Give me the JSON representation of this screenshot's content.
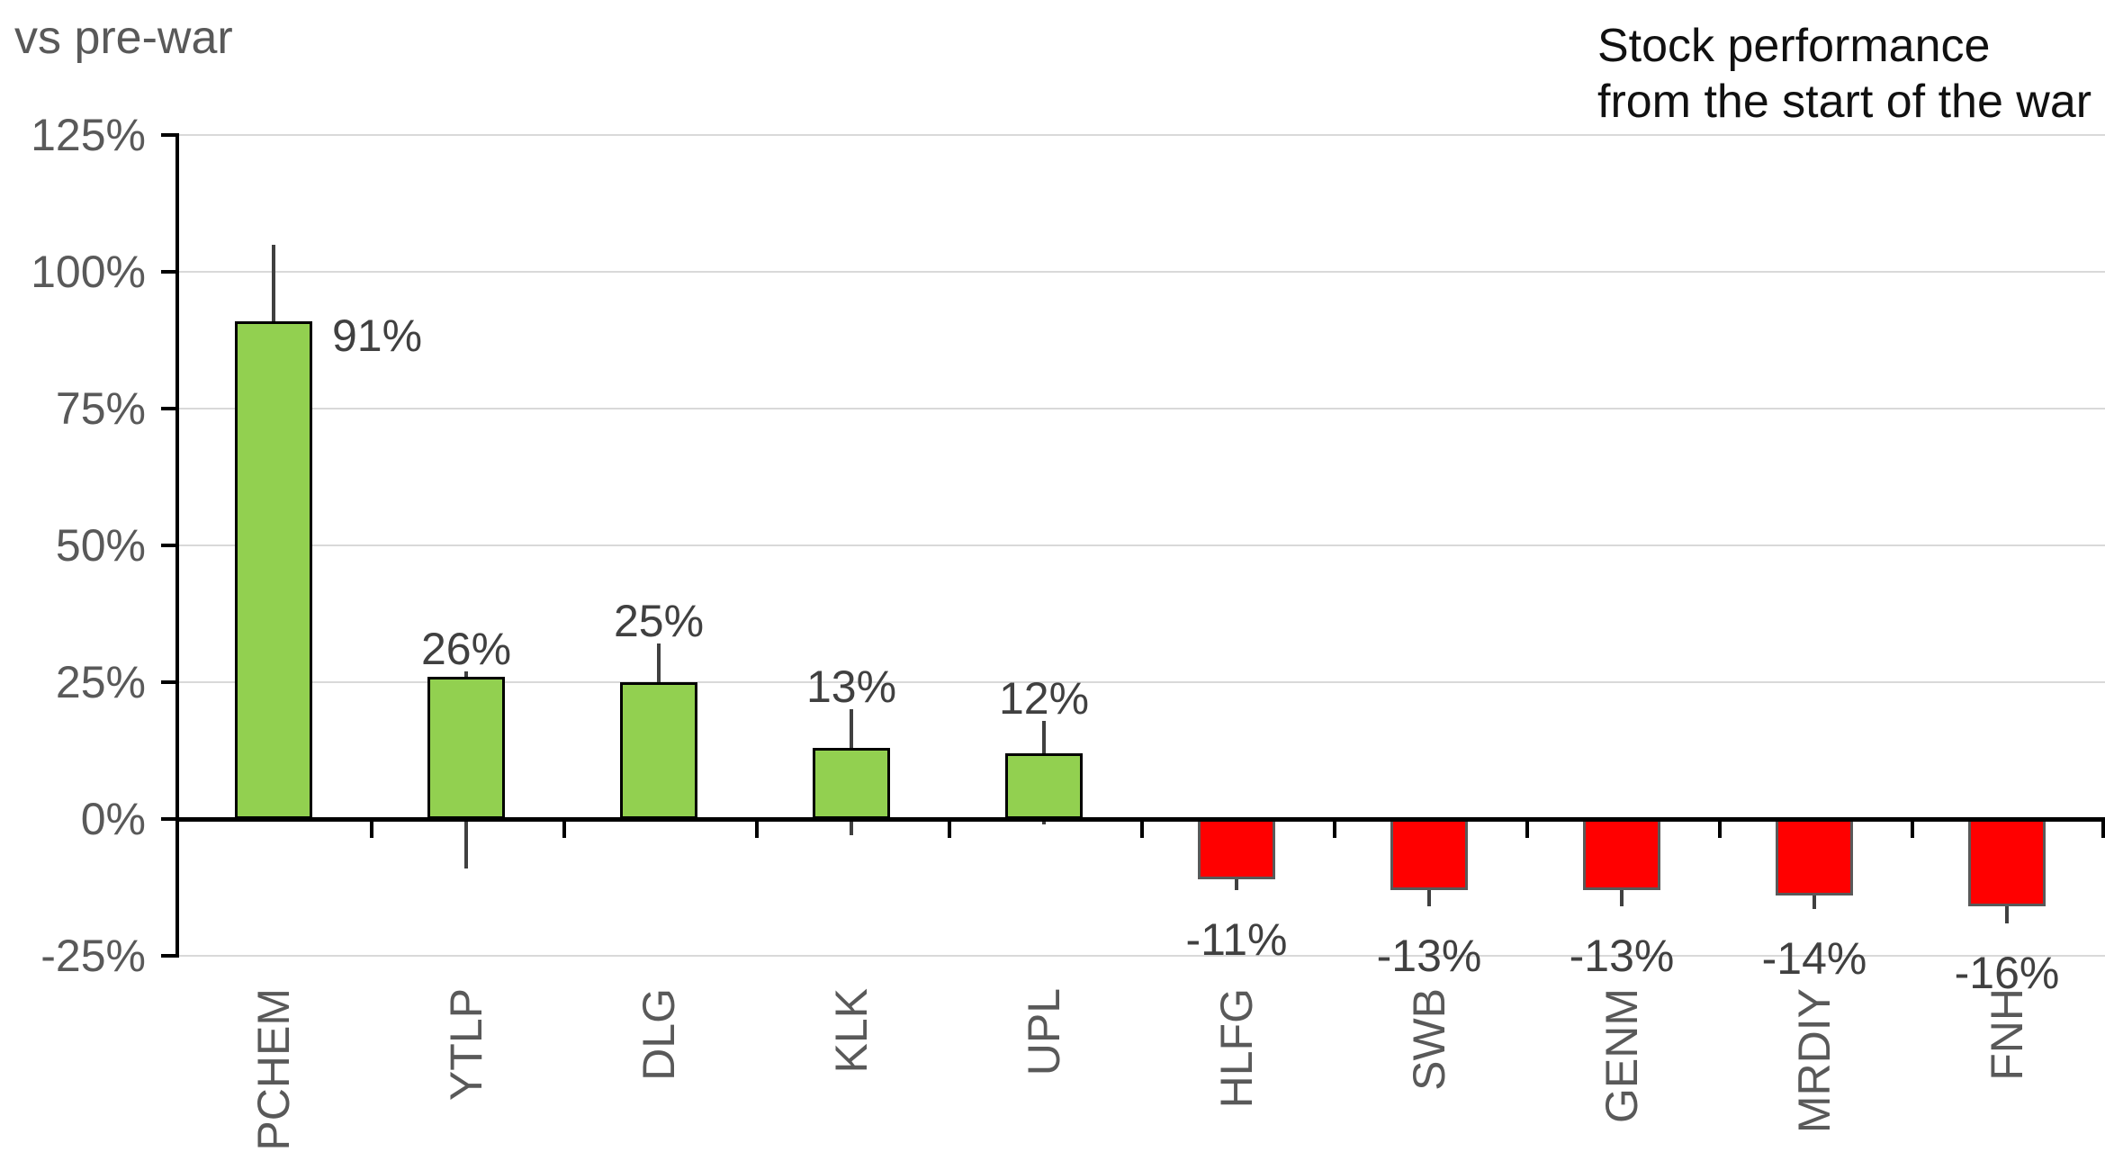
{
  "header": {
    "axis_note": "vs pre-war",
    "title_line1": "Stock performance",
    "title_line2": "from the start of the war"
  },
  "chart_data": {
    "type": "bar",
    "title": "Stock performance from the start of the war",
    "y_axis_note": "vs pre-war",
    "unit": "%",
    "ylim": [
      -25,
      125
    ],
    "yticks": [
      125,
      100,
      75,
      50,
      25,
      0,
      -25
    ],
    "ytick_labels": [
      "125%",
      "100%",
      "75%",
      "50%",
      "25%",
      "0%",
      "-25%"
    ],
    "grid": true,
    "legend": false,
    "categories": [
      "PCHEM",
      "YTLP",
      "DLG",
      "KLK",
      "UPL",
      "HLFG",
      "SWB",
      "GENM",
      "MRDIY",
      "FNH"
    ],
    "values": [
      91,
      26,
      25,
      13,
      12,
      -11,
      -13,
      -13,
      -14,
      -16
    ],
    "data_labels": [
      "91%",
      "26%",
      "25%",
      "13%",
      "12%",
      "-11%",
      "-13%",
      "-13%",
      "-14%",
      "-16%"
    ],
    "label_positions": [
      "right",
      "top",
      "top",
      "top",
      "top",
      "bottom",
      "bottom",
      "bottom",
      "bottom",
      "bottom"
    ],
    "error_whiskers": [
      {
        "high": 105,
        "low": null
      },
      {
        "high": 27,
        "low": -9
      },
      {
        "high": 32,
        "low": null
      },
      {
        "high": 20,
        "low": -3
      },
      {
        "high": 18,
        "low": -1
      },
      {
        "high": null,
        "low": -13
      },
      {
        "high": null,
        "low": -16
      },
      {
        "high": null,
        "low": -16
      },
      {
        "high": null,
        "low": -16.5
      },
      {
        "high": null,
        "low": -19
      }
    ],
    "colors": {
      "positive_fill": "#92d050",
      "positive_border": "#000000",
      "negative_fill": "#ff0000",
      "negative_border": "#595959",
      "whisker": "#404040",
      "gridline": "#d9d9d9",
      "axis": "#000000",
      "axis_text": "#595959",
      "data_label_text": "#404040",
      "title_text": "#111111"
    }
  }
}
